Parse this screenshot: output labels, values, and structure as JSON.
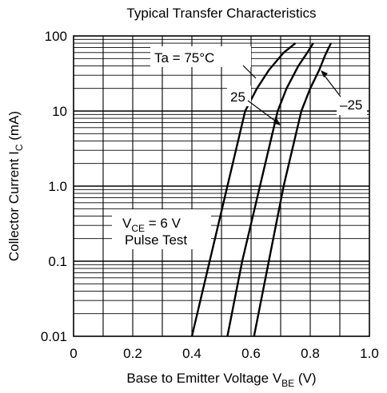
{
  "chart_data": {
    "type": "line",
    "title": "Typical Transfer Characteristics",
    "xlabel": "Base to Emitter Voltage",
    "xlabel_symbol": "V",
    "xlabel_sub": "BE",
    "xlabel_unit": "(V)",
    "ylabel": "Collector Current",
    "ylabel_symbol": "I",
    "ylabel_sub": "C",
    "ylabel_unit": "(mA)",
    "x_scale": "linear",
    "y_scale": "log",
    "xlim": [
      0,
      1.0
    ],
    "ylim": [
      0.01,
      100
    ],
    "x_ticks": [
      "0",
      "0.2",
      "0.4",
      "0.6",
      "0.8",
      "1.0"
    ],
    "y_ticks": [
      "0.01",
      "0.1",
      "1.0",
      "10",
      "100"
    ],
    "grid": true,
    "series": [
      {
        "name": "Ta = 75°C",
        "x": [
          0.4,
          0.46,
          0.52,
          0.58,
          0.62,
          0.66,
          0.71,
          0.75
        ],
        "y": [
          0.01,
          0.1,
          1.0,
          10,
          20,
          35,
          60,
          80
        ]
      },
      {
        "name": "25",
        "x": [
          0.52,
          0.57,
          0.63,
          0.69,
          0.72,
          0.76,
          0.79,
          0.81
        ],
        "y": [
          0.01,
          0.1,
          1.0,
          10,
          20,
          40,
          60,
          80
        ]
      },
      {
        "name": "–25",
        "x": [
          0.61,
          0.66,
          0.71,
          0.77,
          0.8,
          0.83,
          0.85,
          0.87
        ],
        "y": [
          0.01,
          0.1,
          1.0,
          10,
          20,
          35,
          55,
          80
        ]
      }
    ],
    "annotations": [
      {
        "text": "Ta = 75°C"
      },
      {
        "text": "25"
      },
      {
        "text": "–25"
      }
    ],
    "legend_box": {
      "line1_symbol": "V",
      "line1_sub": "CE",
      "line1_value": " = 6 V",
      "line2": "Pulse Test"
    }
  }
}
